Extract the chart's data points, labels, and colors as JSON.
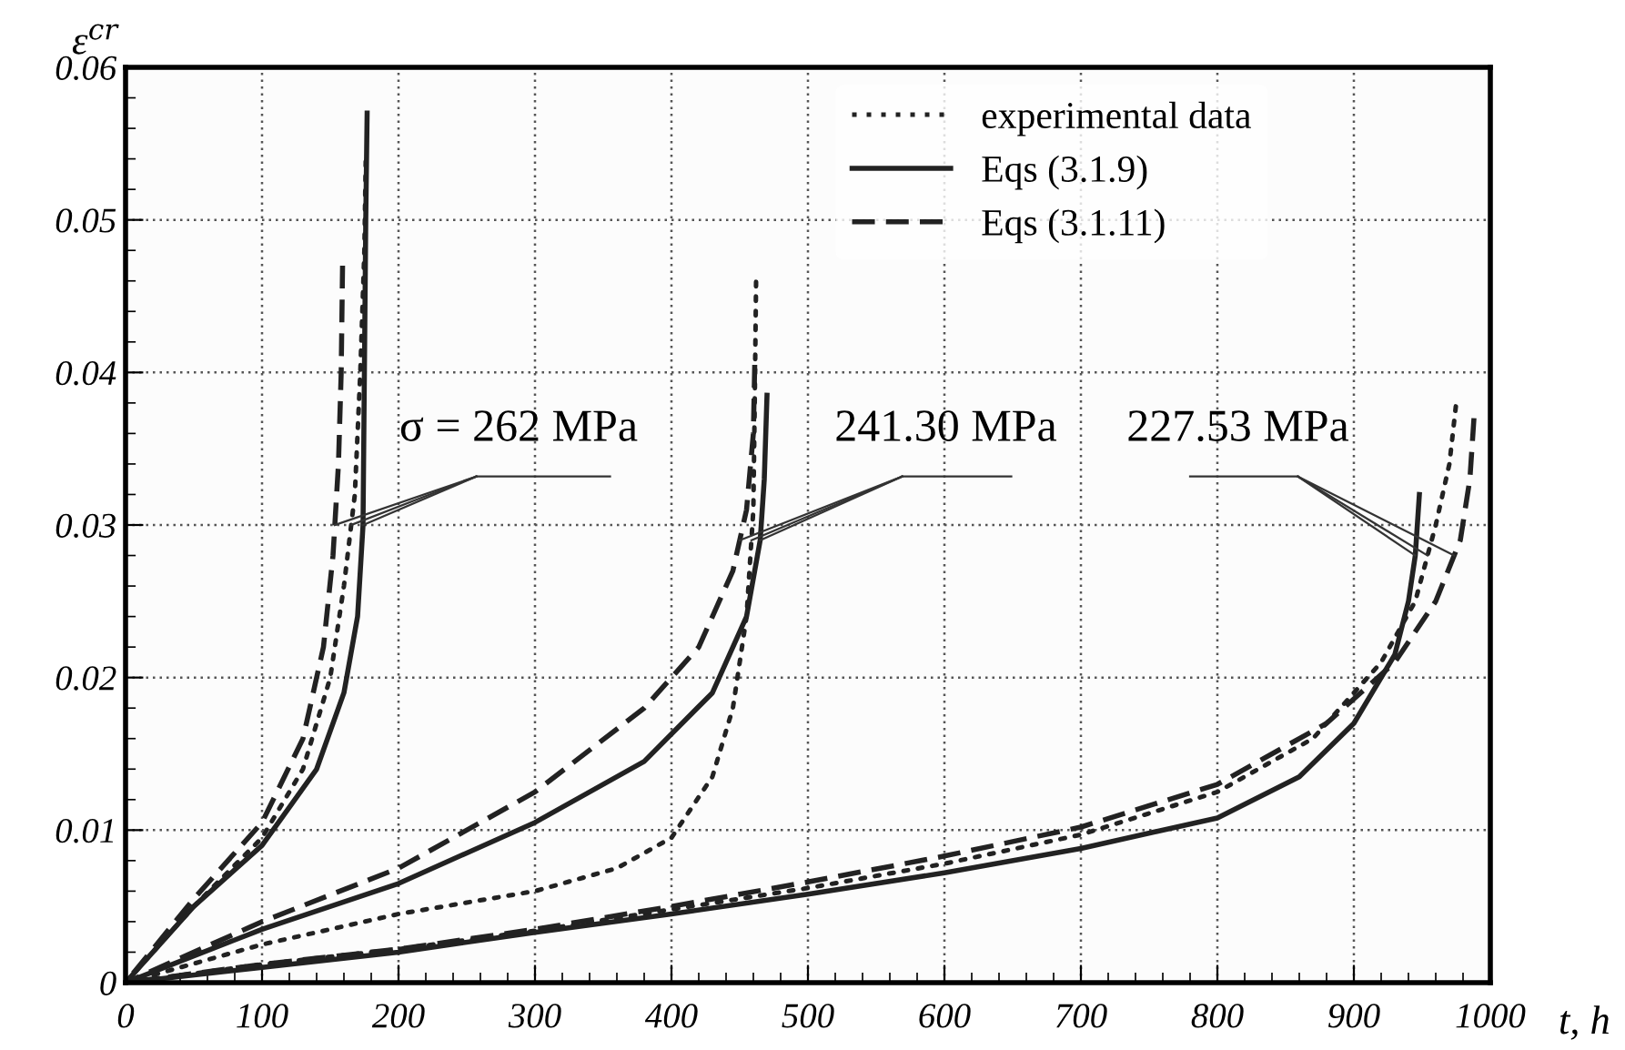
{
  "chart_data": {
    "type": "line",
    "xlabel": "t, h",
    "ylabel": "ε$^{cr}$",
    "xlim": [
      0,
      1000
    ],
    "xticks": [
      0,
      100,
      200,
      300,
      400,
      500,
      600,
      700,
      800,
      900,
      1000
    ],
    "ylim": [
      0,
      0.06
    ],
    "yticks": [
      0,
      0.01,
      0.02,
      0.03,
      0.04,
      0.05,
      0.06
    ],
    "grid": true,
    "legend": "top right",
    "marker": "none",
    "series": [
      {
        "name": "experimental data",
        "color": "#222222",
        "line_style": "dotted",
        "x": [
          0,
          50,
          100,
          130,
          150,
          160,
          168,
          172,
          175,
          176
        ],
        "values": [
          0,
          0.005,
          0.0095,
          0.014,
          0.02,
          0.026,
          0.032,
          0.04,
          0.048,
          0.054
        ]
      },
      {
        "name": "Eqs (3.1.9)",
        "color": "#222222",
        "line_style": "solid",
        "x": [
          0,
          50,
          100,
          140,
          160,
          170,
          174,
          175,
          176,
          177
        ],
        "values": [
          0,
          0.005,
          0.009,
          0.014,
          0.019,
          0.024,
          0.03,
          0.04,
          0.05,
          0.057
        ]
      },
      {
        "name": "Eqs (3.1.11)",
        "color": "#222222",
        "line_style": "dashed",
        "x": [
          0,
          50,
          100,
          130,
          145,
          152,
          156,
          158,
          159
        ],
        "values": [
          0,
          0.0055,
          0.0105,
          0.016,
          0.022,
          0.028,
          0.034,
          0.04,
          0.047
        ]
      },
      {
        "color": "#222222",
        "line_style": "dotted",
        "x": [
          0,
          100,
          200,
          300,
          360,
          400,
          430,
          445,
          455,
          460,
          461,
          462
        ],
        "values": [
          0,
          0.0025,
          0.0045,
          0.006,
          0.0075,
          0.0095,
          0.0135,
          0.018,
          0.024,
          0.031,
          0.038,
          0.046
        ]
      },
      {
        "color": "#222222",
        "line_style": "solid",
        "x": [
          0,
          100,
          200,
          300,
          380,
          430,
          455,
          465,
          468,
          470
        ],
        "values": [
          0,
          0.0035,
          0.0065,
          0.0105,
          0.0145,
          0.019,
          0.024,
          0.029,
          0.033,
          0.0385
        ]
      },
      {
        "color": "#222222",
        "line_style": "dashed",
        "x": [
          0,
          100,
          200,
          300,
          380,
          420,
          445,
          455,
          460,
          461
        ],
        "values": [
          0,
          0.004,
          0.0075,
          0.0125,
          0.018,
          0.022,
          0.027,
          0.031,
          0.036,
          0.0405
        ]
      },
      {
        "color": "#222222",
        "line_style": "dotted",
        "x": [
          0,
          100,
          200,
          300,
          400,
          500,
          600,
          700,
          800,
          870,
          920,
          945,
          960,
          970,
          975
        ],
        "values": [
          0,
          0.0012,
          0.0022,
          0.0034,
          0.0048,
          0.0062,
          0.0078,
          0.0097,
          0.0125,
          0.016,
          0.021,
          0.025,
          0.03,
          0.034,
          0.038
        ]
      },
      {
        "color": "#222222",
        "line_style": "solid",
        "x": [
          0,
          100,
          200,
          300,
          400,
          500,
          600,
          700,
          800,
          860,
          900,
          930,
          940,
          945,
          948
        ],
        "values": [
          0,
          0.001,
          0.002,
          0.0033,
          0.0045,
          0.0058,
          0.0072,
          0.0088,
          0.0108,
          0.0135,
          0.017,
          0.0215,
          0.025,
          0.028,
          0.032
        ]
      },
      {
        "color": "#222222",
        "line_style": "dashed",
        "x": [
          0,
          100,
          200,
          300,
          400,
          500,
          600,
          700,
          800,
          880,
          930,
          960,
          978,
          985,
          988
        ],
        "values": [
          0,
          0.0012,
          0.0022,
          0.0035,
          0.005,
          0.0066,
          0.0083,
          0.0102,
          0.013,
          0.017,
          0.021,
          0.025,
          0.029,
          0.033,
          0.037
        ]
      }
    ],
    "annotations": [
      {
        "text": "σ = 262 MPa",
        "x": 174,
        "y": 0.03
      },
      {
        "text": "241.30 MPa",
        "x": 465,
        "y": 0.029
      },
      {
        "text": "227.53 MPa",
        "x": 945,
        "y": 0.028
      }
    ]
  }
}
